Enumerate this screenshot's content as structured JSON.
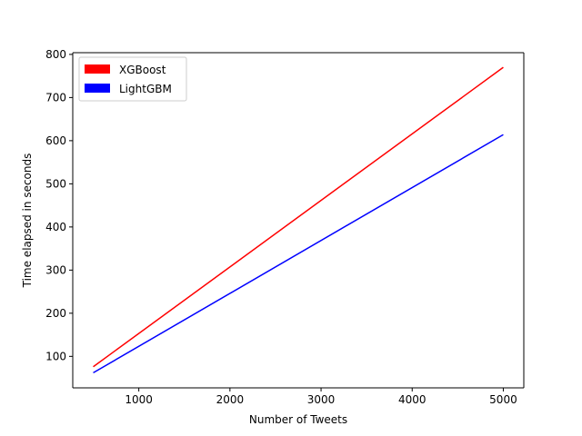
{
  "chart_data": {
    "type": "line",
    "title": "",
    "xlabel": "Number of Tweets",
    "ylabel": "Time elapsed in seconds",
    "xlim": [
      275,
      5225
    ],
    "ylim": [
      27,
      804
    ],
    "xticks": [
      1000,
      2000,
      3000,
      4000,
      5000
    ],
    "yticks": [
      100,
      200,
      300,
      400,
      500,
      600,
      700,
      800
    ],
    "xtick_labels": [
      "1000",
      "2000",
      "3000",
      "4000",
      "5000"
    ],
    "ytick_labels": [
      "100",
      "200",
      "300",
      "400",
      "500",
      "600",
      "700",
      "800"
    ],
    "grid": false,
    "legend_position": "top-left",
    "series": [
      {
        "name": "XGBoost",
        "color": "#ff0000",
        "x": [
          500,
          5000
        ],
        "values": [
          76,
          770
        ]
      },
      {
        "name": "LightGBM",
        "color": "#0000ff",
        "x": [
          500,
          5000
        ],
        "values": [
          62,
          614
        ]
      }
    ]
  }
}
